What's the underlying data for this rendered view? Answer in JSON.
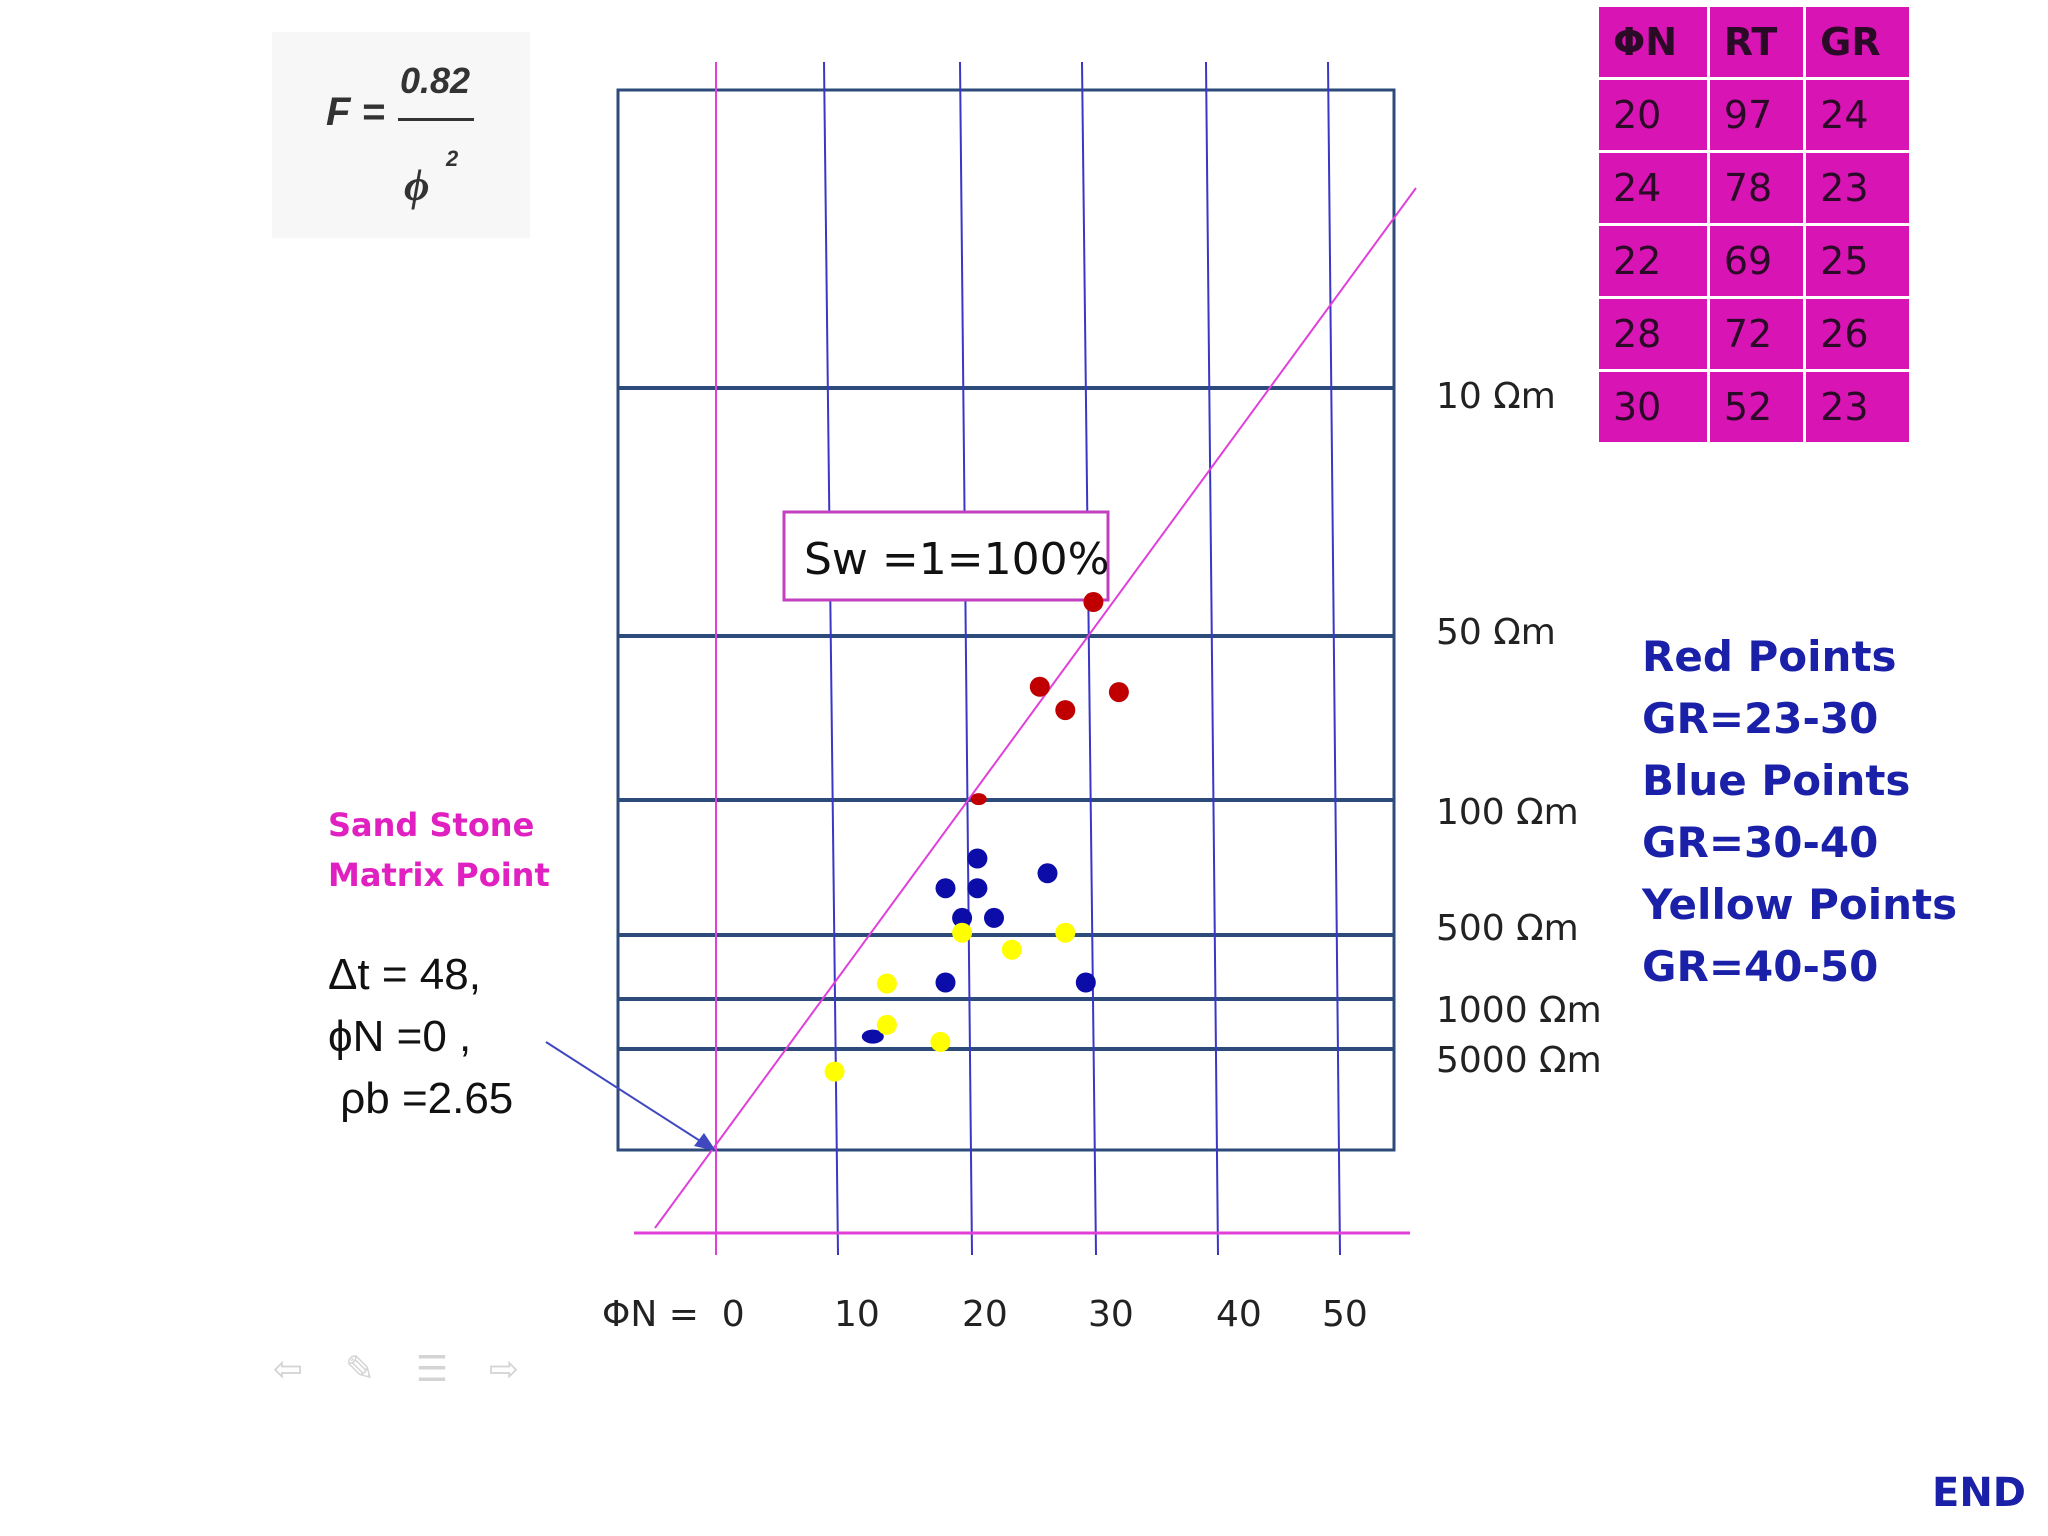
{
  "formula": {
    "lhs": "F =",
    "numerator": "0.82",
    "denominator": "ϕ",
    "exponent": "2"
  },
  "matrix": {
    "label_line1": "Sand Stone",
    "label_line2": "Matrix Point",
    "delta_t": "Δt = 48,",
    "phi_n": "ϕN =0 ,",
    "rho_b": " ρb =2.65"
  },
  "table": {
    "headers": [
      "ΦN",
      "RT",
      "GR"
    ],
    "rows": [
      [
        "20",
        "97",
        "24"
      ],
      [
        "24",
        "78",
        "23"
      ],
      [
        "22",
        "69",
        "25"
      ],
      [
        "28",
        "72",
        "26"
      ],
      [
        "30",
        "52",
        "23"
      ]
    ]
  },
  "legend": {
    "red_title": "Red Points",
    "red_range": "GR=23-30",
    "blue_title": "Blue Points",
    "blue_range": "GR=30-40",
    "yellow_title": "Yellow Points",
    "yellow_range": "GR=40-50"
  },
  "end_label": "END",
  "nav": {
    "back": "⇦",
    "pen": "✎",
    "menu": "☰",
    "forward": "⇨"
  },
  "colors": {
    "grid": "#2c4a7a",
    "vertical": "#3a36c8",
    "magenta": "#e040d8",
    "red": "#c00000",
    "blue": "#0c0ca8",
    "yellow": "#ffff00"
  },
  "chart_data": {
    "type": "scatter",
    "title": "",
    "xlabel": "ΦN",
    "x_axis_label": "ΦN =  0",
    "x_ticks": [
      "10",
      "20",
      "30",
      "40",
      "50"
    ],
    "resistivity_labels": [
      "10 Ωm",
      "50 Ωm",
      "100 Ωm",
      "500 Ωm",
      "1000 Ωm",
      "5000 Ωm"
    ],
    "water_line_label": "Sw =1=100%",
    "series": [
      {
        "name": "Red Points",
        "color": "#c00000",
        "points": [
          [
            29.6,
            48.3
          ],
          [
            25.4,
            56.3
          ],
          [
            31.6,
            56.8
          ],
          [
            27.4,
            58.5
          ],
          [
            20.6,
            66.9
          ]
        ]
      },
      {
        "name": "Blue Points",
        "color": "#0c0ca8",
        "points": [
          [
            20.5,
            72.5
          ],
          [
            26.0,
            73.9
          ],
          [
            18.0,
            75.3
          ],
          [
            20.5,
            75.3
          ],
          [
            19.3,
            78.1
          ],
          [
            21.8,
            78.1
          ],
          [
            18.0,
            84.2
          ],
          [
            29.0,
            84.2
          ],
          [
            12.3,
            89.3
          ]
        ]
      },
      {
        "name": "Yellow Points",
        "color": "#ffff00",
        "points": [
          [
            19.3,
            79.5
          ],
          [
            27.4,
            79.5
          ],
          [
            23.2,
            81.1
          ],
          [
            13.4,
            84.3
          ],
          [
            13.4,
            88.2
          ],
          [
            17.6,
            89.8
          ],
          [
            9.3,
            92.6
          ]
        ]
      }
    ]
  }
}
